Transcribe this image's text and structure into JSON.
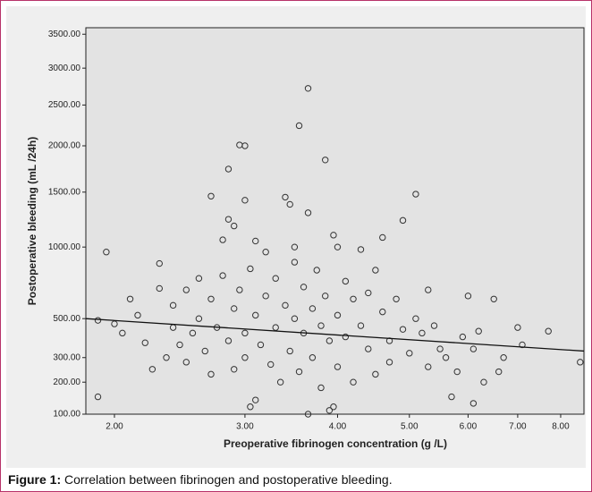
{
  "chart_data": {
    "type": "scatter",
    "x_label": "Preoperative fibrinogen concentration (g /L)",
    "y_label": "Postoperative bleeding (mL /24h)",
    "xscale": "log",
    "yscale": "sqrt",
    "xlim": [
      1.83,
      8.6
    ],
    "ylim": [
      100,
      3600
    ],
    "xticks": [
      {
        "value": 2,
        "label": "2.00"
      },
      {
        "value": 3,
        "label": "3.00"
      },
      {
        "value": 4,
        "label": "4.00"
      },
      {
        "value": 5,
        "label": "5.00"
      },
      {
        "value": 6,
        "label": "6.00"
      },
      {
        "value": 7,
        "label": "7.00"
      },
      {
        "value": 8,
        "label": "8.00"
      }
    ],
    "yticks": [
      {
        "value": 100,
        "label": "100.00"
      },
      {
        "value": 200,
        "label": "200.00"
      },
      {
        "value": 300,
        "label": "300.00"
      },
      {
        "value": 500,
        "label": "500.00"
      },
      {
        "value": 1000,
        "label": "1000.00"
      },
      {
        "value": 1500,
        "label": "1500.00"
      },
      {
        "value": 2000,
        "label": "2000.00"
      },
      {
        "value": 2500,
        "label": "2500.00"
      },
      {
        "value": 3000,
        "label": "3000.00"
      },
      {
        "value": 3500,
        "label": "3500.00"
      }
    ],
    "marker_color": "#333333",
    "x": [
      1.9,
      1.9,
      1.95,
      2.0,
      2.05,
      2.1,
      2.15,
      2.2,
      2.25,
      2.3,
      2.3,
      2.35,
      2.4,
      2.4,
      2.45,
      2.5,
      2.5,
      2.55,
      2.6,
      2.6,
      2.65,
      2.7,
      2.7,
      2.7,
      2.75,
      2.8,
      2.8,
      2.85,
      2.85,
      2.85,
      2.9,
      2.9,
      2.9,
      2.95,
      2.95,
      3.0,
      3.0,
      3.0,
      3.0,
      3.05,
      3.05,
      3.1,
      3.1,
      3.1,
      3.15,
      3.2,
      3.2,
      3.25,
      3.3,
      3.3,
      3.35,
      3.4,
      3.4,
      3.45,
      3.45,
      3.5,
      3.5,
      3.5,
      3.55,
      3.55,
      3.6,
      3.6,
      3.65,
      3.65,
      3.65,
      3.7,
      3.7,
      3.75,
      3.8,
      3.8,
      3.85,
      3.85,
      3.9,
      3.9,
      3.95,
      3.95,
      4.0,
      4.0,
      4.0,
      4.1,
      4.1,
      4.2,
      4.2,
      4.3,
      4.3,
      4.4,
      4.4,
      4.5,
      4.5,
      4.6,
      4.6,
      4.7,
      4.7,
      4.8,
      4.9,
      4.9,
      5.0,
      5.1,
      5.1,
      5.2,
      5.3,
      5.3,
      5.4,
      5.5,
      5.6,
      5.7,
      5.8,
      5.9,
      6.0,
      6.1,
      6.1,
      6.2,
      6.3,
      6.5,
      6.6,
      6.7,
      7.0,
      7.1,
      7.7,
      8.5
    ],
    "values": [
      150,
      490,
      960,
      470,
      420,
      620,
      520,
      370,
      250,
      870,
      690,
      300,
      450,
      580,
      360,
      680,
      280,
      420,
      760,
      500,
      330,
      1460,
      620,
      230,
      450,
      1060,
      780,
      1740,
      1240,
      380,
      1180,
      560,
      250,
      2010,
      680,
      2000,
      1420,
      420,
      300,
      120,
      830,
      140,
      520,
      1050,
      360,
      960,
      640,
      270,
      450,
      760,
      200,
      1450,
      580,
      1380,
      330,
      1000,
      880,
      500,
      2240,
      240,
      700,
      420,
      2720,
      100,
      1300,
      560,
      300,
      820,
      460,
      180,
      1840,
      640,
      110,
      380,
      120,
      1100,
      1000,
      520,
      260,
      740,
      400,
      620,
      200,
      980,
      460,
      340,
      660,
      820,
      230,
      1080,
      540,
      380,
      280,
      620,
      1230,
      440,
      320,
      1480,
      500,
      420,
      680,
      260,
      460,
      340,
      300,
      150,
      240,
      400,
      640,
      130,
      340,
      430,
      200,
      620,
      240,
      300,
      450,
      360,
      430,
      280
    ],
    "trend_line": {
      "x": [
        1.83,
        8.6
      ],
      "values": [
        500,
        330
      ],
      "color": "#111111"
    }
  },
  "caption": {
    "label": "Figure 1:",
    "text": "Correlation between fibrinogen and postoperative bleeding."
  }
}
